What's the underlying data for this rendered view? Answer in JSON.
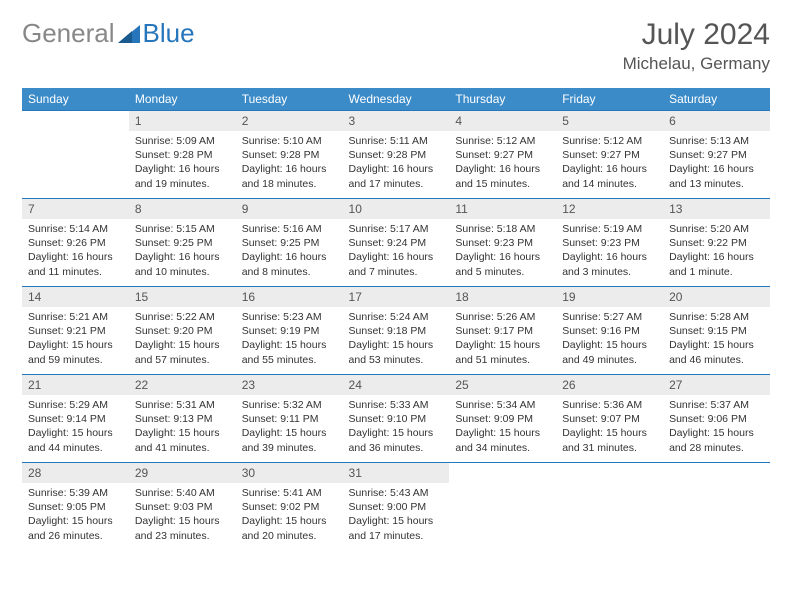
{
  "brand": {
    "part1": "General",
    "part2": "Blue"
  },
  "title": {
    "month_year": "July 2024",
    "location": "Michelau, Germany"
  },
  "colors": {
    "header_bg": "#3b8bc9",
    "header_text": "#ffffff",
    "cell_border": "#2776bb",
    "daynum_bg": "#ececec",
    "text": "#333333",
    "brand_gray": "#888888",
    "brand_blue": "#2776bb",
    "page_bg": "#ffffff"
  },
  "weekdays": [
    "Sunday",
    "Monday",
    "Tuesday",
    "Wednesday",
    "Thursday",
    "Friday",
    "Saturday"
  ],
  "first_weekday_index": 1,
  "days": [
    {
      "n": 1,
      "sunrise": "5:09 AM",
      "sunset": "9:28 PM",
      "daylight": "16 hours and 19 minutes."
    },
    {
      "n": 2,
      "sunrise": "5:10 AM",
      "sunset": "9:28 PM",
      "daylight": "16 hours and 18 minutes."
    },
    {
      "n": 3,
      "sunrise": "5:11 AM",
      "sunset": "9:28 PM",
      "daylight": "16 hours and 17 minutes."
    },
    {
      "n": 4,
      "sunrise": "5:12 AM",
      "sunset": "9:27 PM",
      "daylight": "16 hours and 15 minutes."
    },
    {
      "n": 5,
      "sunrise": "5:12 AM",
      "sunset": "9:27 PM",
      "daylight": "16 hours and 14 minutes."
    },
    {
      "n": 6,
      "sunrise": "5:13 AM",
      "sunset": "9:27 PM",
      "daylight": "16 hours and 13 minutes."
    },
    {
      "n": 7,
      "sunrise": "5:14 AM",
      "sunset": "9:26 PM",
      "daylight": "16 hours and 11 minutes."
    },
    {
      "n": 8,
      "sunrise": "5:15 AM",
      "sunset": "9:25 PM",
      "daylight": "16 hours and 10 minutes."
    },
    {
      "n": 9,
      "sunrise": "5:16 AM",
      "sunset": "9:25 PM",
      "daylight": "16 hours and 8 minutes."
    },
    {
      "n": 10,
      "sunrise": "5:17 AM",
      "sunset": "9:24 PM",
      "daylight": "16 hours and 7 minutes."
    },
    {
      "n": 11,
      "sunrise": "5:18 AM",
      "sunset": "9:23 PM",
      "daylight": "16 hours and 5 minutes."
    },
    {
      "n": 12,
      "sunrise": "5:19 AM",
      "sunset": "9:23 PM",
      "daylight": "16 hours and 3 minutes."
    },
    {
      "n": 13,
      "sunrise": "5:20 AM",
      "sunset": "9:22 PM",
      "daylight": "16 hours and 1 minute."
    },
    {
      "n": 14,
      "sunrise": "5:21 AM",
      "sunset": "9:21 PM",
      "daylight": "15 hours and 59 minutes."
    },
    {
      "n": 15,
      "sunrise": "5:22 AM",
      "sunset": "9:20 PM",
      "daylight": "15 hours and 57 minutes."
    },
    {
      "n": 16,
      "sunrise": "5:23 AM",
      "sunset": "9:19 PM",
      "daylight": "15 hours and 55 minutes."
    },
    {
      "n": 17,
      "sunrise": "5:24 AM",
      "sunset": "9:18 PM",
      "daylight": "15 hours and 53 minutes."
    },
    {
      "n": 18,
      "sunrise": "5:26 AM",
      "sunset": "9:17 PM",
      "daylight": "15 hours and 51 minutes."
    },
    {
      "n": 19,
      "sunrise": "5:27 AM",
      "sunset": "9:16 PM",
      "daylight": "15 hours and 49 minutes."
    },
    {
      "n": 20,
      "sunrise": "5:28 AM",
      "sunset": "9:15 PM",
      "daylight": "15 hours and 46 minutes."
    },
    {
      "n": 21,
      "sunrise": "5:29 AM",
      "sunset": "9:14 PM",
      "daylight": "15 hours and 44 minutes."
    },
    {
      "n": 22,
      "sunrise": "5:31 AM",
      "sunset": "9:13 PM",
      "daylight": "15 hours and 41 minutes."
    },
    {
      "n": 23,
      "sunrise": "5:32 AM",
      "sunset": "9:11 PM",
      "daylight": "15 hours and 39 minutes."
    },
    {
      "n": 24,
      "sunrise": "5:33 AM",
      "sunset": "9:10 PM",
      "daylight": "15 hours and 36 minutes."
    },
    {
      "n": 25,
      "sunrise": "5:34 AM",
      "sunset": "9:09 PM",
      "daylight": "15 hours and 34 minutes."
    },
    {
      "n": 26,
      "sunrise": "5:36 AM",
      "sunset": "9:07 PM",
      "daylight": "15 hours and 31 minutes."
    },
    {
      "n": 27,
      "sunrise": "5:37 AM",
      "sunset": "9:06 PM",
      "daylight": "15 hours and 28 minutes."
    },
    {
      "n": 28,
      "sunrise": "5:39 AM",
      "sunset": "9:05 PM",
      "daylight": "15 hours and 26 minutes."
    },
    {
      "n": 29,
      "sunrise": "5:40 AM",
      "sunset": "9:03 PM",
      "daylight": "15 hours and 23 minutes."
    },
    {
      "n": 30,
      "sunrise": "5:41 AM",
      "sunset": "9:02 PM",
      "daylight": "15 hours and 20 minutes."
    },
    {
      "n": 31,
      "sunrise": "5:43 AM",
      "sunset": "9:00 PM",
      "daylight": "15 hours and 17 minutes."
    }
  ],
  "labels": {
    "sunrise": "Sunrise:",
    "sunset": "Sunset:",
    "daylight": "Daylight:"
  }
}
